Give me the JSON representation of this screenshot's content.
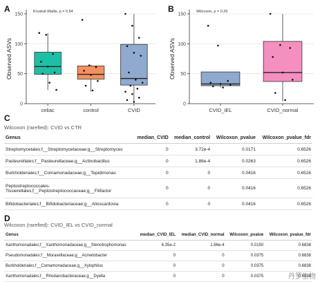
{
  "panels": {
    "A": {
      "letter": "A"
    },
    "B": {
      "letter": "B"
    },
    "C": {
      "letter": "C"
    },
    "D": {
      "letter": "D"
    }
  },
  "chart_data": [
    {
      "type": "box",
      "panel": "A",
      "annotation": "Kruskal-Wallis, p = 0.54",
      "ylabel": "Observed ASVs",
      "xlabel": "",
      "ylim": [
        0,
        150
      ],
      "yticks": [
        0,
        50,
        100,
        150
      ],
      "grid": true,
      "categories": [
        "celiac",
        "control",
        "CVID"
      ],
      "colors": [
        "#1fbfa6",
        "#f4915e",
        "#8fa9cf"
      ],
      "boxes": [
        {
          "category": "celiac",
          "min": 23,
          "q1": 49,
          "median": 62,
          "q3": 86,
          "max": 118
        },
        {
          "category": "control",
          "min": 20,
          "q1": 41,
          "median": 49,
          "q3": 63,
          "max": 65
        },
        {
          "category": "CVID",
          "min": 4,
          "q1": 31,
          "median": 42,
          "q3": 99,
          "max": 150
        }
      ],
      "points": [
        {
          "category": "celiac",
          "values": [
            118,
            115,
            83,
            70,
            62,
            52,
            50,
            35,
            23
          ]
        },
        {
          "category": "control",
          "values": [
            140,
            64,
            61,
            55,
            48,
            38,
            30,
            22
          ]
        },
        {
          "category": "CVID",
          "values": [
            150,
            130,
            110,
            96,
            85,
            80,
            52,
            40,
            35,
            30,
            25,
            20,
            16,
            10,
            6,
            3
          ]
        }
      ]
    },
    {
      "type": "box",
      "panel": "B",
      "annotation": "Wilcoxon, p = 0.26",
      "ylabel": "Observed ASVs",
      "xlabel": "",
      "ylim": [
        0,
        150
      ],
      "yticks": [
        0,
        50,
        100,
        150
      ],
      "grid": true,
      "categories": [
        "CVID_IEL",
        "CVID_normal"
      ],
      "colors": [
        "#8fa9cf",
        "#f48fbf"
      ],
      "boxes": [
        {
          "category": "CVID_IEL",
          "min": 27,
          "q1": 30,
          "median": 33,
          "q3": 53,
          "max": 53
        },
        {
          "category": "CVID_normal",
          "min": 4,
          "q1": 37,
          "median": 52,
          "q3": 104,
          "max": 150
        }
      ],
      "points": [
        {
          "category": "CVID_IEL",
          "values": [
            130,
            97,
            38,
            35,
            33,
            31,
            29,
            27
          ]
        },
        {
          "category": "CVID_normal",
          "values": [
            150,
            98,
            93,
            78,
            52,
            40,
            18,
            6
          ]
        }
      ]
    },
    {
      "type": "table",
      "panel": "C",
      "title": "Wilcoxon (rarefied): CVID vs CTR",
      "columns": [
        "Genus",
        "median_CVID",
        "median_control",
        "Wilcoxon_pvalue",
        "Wilcoxon_pvalue_fdr"
      ],
      "rows": [
        [
          "Streptomycetales;f__Streptomycetaceae;g__Streptomyces",
          "0",
          "3.72e-4",
          "0.0171",
          "0.6526"
        ],
        [
          "Pasteurellales;f__Pasteurellaceae;g__Actinobacillus",
          "0",
          "1.86e-4",
          "0.0263",
          "0.6526"
        ],
        [
          "Burkholderiales;f__Comamonadaceae;g__Tepidimonas",
          "0",
          "0",
          "0.0416",
          "0.6526"
        ],
        [
          "Peptostreptococcales-\nTissierellales;f__Peptostreptococcaceae;g__Filifactor",
          "0",
          "0",
          "0.0416",
          "0.6526"
        ],
        [
          "Bifidobacteriales;f__Bifidobacteriaceae;g__Alloscardovia",
          "0",
          "0",
          "0.0416",
          "0.6526"
        ]
      ]
    },
    {
      "type": "table",
      "panel": "D",
      "title": "Wilcoxon (rarefied): CVID_IEL vs CVID_normal",
      "columns": [
        "Genus",
        "median_CVID_IEL",
        "median_CVID_normal",
        "Wilcoxon_pvalue",
        "Wilcoxon_pvalue_fdr"
      ],
      "rows": [
        [
          "Xanthomonadales;f__Xanthomonadaceae;g__Stenotrophomonas",
          "6.35e-2",
          "1.86e-4",
          "0.0150",
          "0.6838"
        ],
        [
          "Pseudomonadales;f__Moraxellaceae;g__Acinetobacter",
          "0",
          "0",
          "0.0375",
          "0.6838"
        ],
        [
          "Burkholderiales;f__Comamonadaceae;g__Xylophilus",
          "0",
          "0",
          "0.0375",
          "0.6838"
        ],
        [
          "Xanthomonadales;f__Rhodanobacteraceae;g__Dyella",
          "0",
          "0",
          "0.0375",
          "0.6838"
        ]
      ]
    }
  ],
  "watermark": "丹罗生物"
}
